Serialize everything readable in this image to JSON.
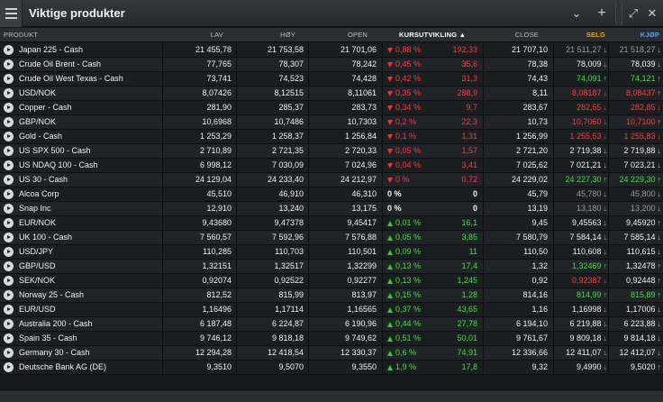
{
  "window": {
    "title": "Viktige produkter",
    "buttons": {
      "chevron": "⌄",
      "add": "+",
      "expand": "⤢",
      "close": "✕"
    }
  },
  "columns": {
    "product": "PRODUKT",
    "low": "LAV",
    "high": "HØY",
    "open": "OPEN",
    "change": "KURSUTVIKLING",
    "close": "CLOSE",
    "sell": "SELG",
    "buy": "KJØP"
  },
  "colors": {
    "sell_header": "#f0a030",
    "buy_header": "#3ab0ff",
    "down": "#ff3b3b",
    "up": "#3fe03f"
  },
  "rows": [
    {
      "name": "Japan 225 - Cash",
      "low": "21 455,78",
      "high": "21 753,58",
      "open": "21 701,06",
      "dir": "down",
      "pct": "0,88 %",
      "abs": "192,33",
      "close": "21 707,10",
      "sell": "21 511,27",
      "sell_c": "grey",
      "sell_a": "d",
      "buy": "21 518,27",
      "buy_c": "grey",
      "buy_a": "d"
    },
    {
      "name": "Crude Oil Brent - Cash",
      "low": "77,765",
      "high": "78,307",
      "open": "78,242",
      "dir": "down",
      "pct": "0,45 %",
      "abs": "35,6",
      "close": "78,38",
      "sell": "78,009",
      "sell_c": "white",
      "sell_a": "d",
      "buy": "78,039",
      "buy_c": "white",
      "buy_a": "d"
    },
    {
      "name": "Crude Oil West Texas - Cash",
      "low": "73,741",
      "high": "74,523",
      "open": "74,428",
      "dir": "down",
      "pct": "0,42 %",
      "abs": "31,3",
      "close": "74,43",
      "sell": "74,091",
      "sell_c": "green",
      "sell_a": "u",
      "buy": "74,121",
      "buy_c": "green",
      "buy_a": "u"
    },
    {
      "name": "USD/NOK",
      "low": "8,07426",
      "high": "8,12515",
      "open": "8,11061",
      "dir": "down",
      "pct": "0,35 %",
      "abs": "288,9",
      "close": "8,11",
      "sell": "8,08187",
      "sell_c": "red",
      "sell_a": "dr",
      "buy": "8,08437",
      "buy_c": "red",
      "buy_a": "u"
    },
    {
      "name": "Copper - Cash",
      "low": "281,90",
      "high": "285,37",
      "open": "283,73",
      "dir": "down",
      "pct": "0,34 %",
      "abs": "9,7",
      "close": "283,67",
      "sell": "282,55",
      "sell_c": "red",
      "sell_a": "dr",
      "buy": "282,85",
      "buy_c": "red",
      "buy_a": "dr"
    },
    {
      "name": "GBP/NOK",
      "low": "10,6968",
      "high": "10,7486",
      "open": "10,7303",
      "dir": "down",
      "pct": "0,2 %",
      "abs": "22,3",
      "close": "10,73",
      "sell": "10,7060",
      "sell_c": "red",
      "sell_a": "dr",
      "buy": "10,7100",
      "buy_c": "red",
      "buy_a": "u"
    },
    {
      "name": "Gold - Cash",
      "low": "1 253,29",
      "high": "1 258,37",
      "open": "1 256,84",
      "dir": "down",
      "pct": "0,1 %",
      "abs": "1,31",
      "close": "1 256,99",
      "sell": "1 255,53",
      "sell_c": "red",
      "sell_a": "dr",
      "buy": "1 255,83",
      "buy_c": "red",
      "buy_a": "dr"
    },
    {
      "name": "US SPX 500 - Cash",
      "low": "2 710,89",
      "high": "2 721,35",
      "open": "2 720,33",
      "dir": "down",
      "pct": "0,05 %",
      "abs": "1,57",
      "close": "2 721,20",
      "sell": "2 719,38",
      "sell_c": "white",
      "sell_a": "d",
      "buy": "2 719,88",
      "buy_c": "white",
      "buy_a": "d"
    },
    {
      "name": "US NDAQ 100 - Cash",
      "low": "6 998,12",
      "high": "7 030,09",
      "open": "7 024,96",
      "dir": "down",
      "pct": "0,04 %",
      "abs": "3,41",
      "close": "7 025,62",
      "sell": "7 021,21",
      "sell_c": "white",
      "sell_a": "d",
      "buy": "7 023,21",
      "buy_c": "white",
      "buy_a": "d"
    },
    {
      "name": "US 30 - Cash",
      "low": "24 129,04",
      "high": "24 233,40",
      "open": "24 212,97",
      "dir": "down",
      "pct": "0 %",
      "abs": "0,72",
      "close": "24 229,02",
      "sell": "24 227,30",
      "sell_c": "green",
      "sell_a": "u",
      "buy": "24 229,30",
      "buy_c": "green",
      "buy_a": "u"
    },
    {
      "name": "Alcoa Corp",
      "low": "45,510",
      "high": "46,910",
      "open": "46,310",
      "dir": "none",
      "pct": "0 %",
      "abs": "0",
      "close": "45,79",
      "sell": "45,780",
      "sell_c": "grey",
      "sell_a": "d",
      "buy": "45,800",
      "buy_c": "grey",
      "buy_a": "d"
    },
    {
      "name": "Snap Inc",
      "low": "12,910",
      "high": "13,240",
      "open": "13,175",
      "dir": "none",
      "pct": "0 %",
      "abs": "0",
      "close": "13,19",
      "sell": "13,180",
      "sell_c": "grey",
      "sell_a": "d",
      "buy": "13,200",
      "buy_c": "grey",
      "buy_a": "d"
    },
    {
      "name": "EUR/NOK",
      "low": "9,43680",
      "high": "9,47378",
      "open": "9,45417",
      "dir": "up",
      "pct": "0,01 %",
      "abs": "16,1",
      "close": "9,45",
      "sell": "9,45563",
      "sell_c": "white",
      "sell_a": "d",
      "buy": "9,45920",
      "buy_c": "white",
      "buy_a": "u"
    },
    {
      "name": "UK 100 - Cash",
      "low": "7 560,57",
      "high": "7 592,96",
      "open": "7 576,88",
      "dir": "up",
      "pct": "0,05 %",
      "abs": "3,85",
      "close": "7 580,79",
      "sell": "7 584,14",
      "sell_c": "white",
      "sell_a": "d",
      "buy": "7 585,14",
      "buy_c": "white",
      "buy_a": "d"
    },
    {
      "name": "USD/JPY",
      "low": "110,285",
      "high": "110,703",
      "open": "110,501",
      "dir": "up",
      "pct": "0,09 %",
      "abs": "11",
      "close": "110,50",
      "sell": "110,608",
      "sell_c": "white",
      "sell_a": "d",
      "buy": "110,615",
      "buy_c": "white",
      "buy_a": "d"
    },
    {
      "name": "GBP/USD",
      "low": "1,32151",
      "high": "1,32517",
      "open": "1,32299",
      "dir": "up",
      "pct": "0,13 %",
      "abs": "17,4",
      "close": "1,32",
      "sell": "1,32469",
      "sell_c": "green",
      "sell_a": "u",
      "buy": "1,32478",
      "buy_c": "white",
      "buy_a": "u"
    },
    {
      "name": "SEK/NOK",
      "low": "0,92074",
      "high": "0,92522",
      "open": "0,92277",
      "dir": "up",
      "pct": "0,13 %",
      "abs": "1,245",
      "close": "0,92",
      "sell": "0,92387",
      "sell_c": "red",
      "sell_a": "dr",
      "buy": "0,92448",
      "buy_c": "white",
      "buy_a": "u"
    },
    {
      "name": "Norway 25 - Cash",
      "low": "812,52",
      "high": "815,99",
      "open": "813,97",
      "dir": "up",
      "pct": "0,15 %",
      "abs": "1,28",
      "close": "814,16",
      "sell": "814,99",
      "sell_c": "green",
      "sell_a": "u",
      "buy": "815,89",
      "buy_c": "green",
      "buy_a": "u"
    },
    {
      "name": "EUR/USD",
      "low": "1,16496",
      "high": "1,17114",
      "open": "1,16565",
      "dir": "up",
      "pct": "0,37 %",
      "abs": "43,65",
      "close": "1,16",
      "sell": "1,16998",
      "sell_c": "white",
      "sell_a": "d",
      "buy": "1,17006",
      "buy_c": "white",
      "buy_a": "d"
    },
    {
      "name": "Australia 200 - Cash",
      "low": "6 187,48",
      "high": "6 224,87",
      "open": "6 190,96",
      "dir": "up",
      "pct": "0,44 %",
      "abs": "27,78",
      "close": "6 194,10",
      "sell": "6 219,88",
      "sell_c": "white",
      "sell_a": "d",
      "buy": "6 223,88",
      "buy_c": "white",
      "buy_a": "d"
    },
    {
      "name": "Spain 35 - Cash",
      "low": "9 746,12",
      "high": "9 818,18",
      "open": "9 749,62",
      "dir": "up",
      "pct": "0,51 %",
      "abs": "50,01",
      "close": "9 761,67",
      "sell": "9 809,18",
      "sell_c": "white",
      "sell_a": "d",
      "buy": "9 814,18",
      "buy_c": "white",
      "buy_a": "d"
    },
    {
      "name": "Germany 30 - Cash",
      "low": "12 294,28",
      "high": "12 418,54",
      "open": "12 330,37",
      "dir": "up",
      "pct": "0,6 %",
      "abs": "74,91",
      "close": "12 336,66",
      "sell": "12 411,07",
      "sell_c": "white",
      "sell_a": "d",
      "buy": "12 412,07",
      "buy_c": "white",
      "buy_a": "d"
    },
    {
      "name": "Deutsche Bank AG (DE)",
      "low": "9,3510",
      "high": "9,5070",
      "open": "9,3550",
      "dir": "up",
      "pct": "1,9 %",
      "abs": "17,8",
      "close": "9,32",
      "sell": "9,4990",
      "sell_c": "white",
      "sell_a": "d",
      "buy": "9,5020",
      "buy_c": "white",
      "buy_a": "u"
    }
  ]
}
